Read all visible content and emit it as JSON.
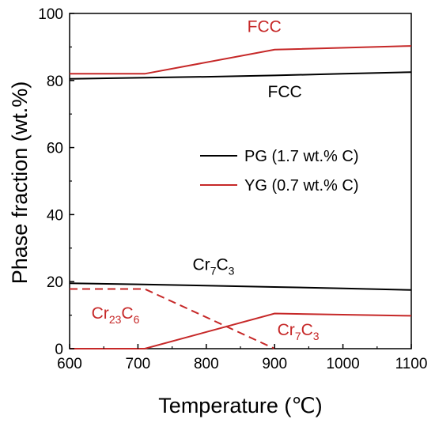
{
  "chart_data": {
    "type": "line",
    "xlabel": "Temperature (℃)",
    "ylabel": "Phase fraction (wt.%)",
    "xlim": [
      600,
      1100
    ],
    "ylim": [
      0,
      100
    ],
    "xticks": [
      "600",
      "700",
      "800",
      "900",
      "1000",
      "1100"
    ],
    "yticks": [
      "0",
      "20",
      "40",
      "60",
      "80",
      "100"
    ],
    "grid": false,
    "legend_position": "center-right",
    "legend": [
      {
        "label": "PG (1.7 wt.% C)",
        "color": "#000000"
      },
      {
        "label": "YG (0.7 wt.% C)",
        "color": "#c62828"
      }
    ],
    "series": [
      {
        "group": "PG",
        "phase": "FCC",
        "color": "#000000",
        "style": "solid",
        "x": [
          600,
          700,
          800,
          900,
          1000,
          1100
        ],
        "y": [
          80.5,
          80.8,
          81.1,
          81.5,
          82.0,
          82.5
        ]
      },
      {
        "group": "PG",
        "phase": "Cr7C3",
        "color": "#000000",
        "style": "solid",
        "x": [
          600,
          700,
          800,
          900,
          1000,
          1100
        ],
        "y": [
          19.5,
          19.2,
          18.8,
          18.4,
          18.0,
          17.5
        ]
      },
      {
        "group": "YG",
        "phase": "FCC",
        "color": "#c62828",
        "style": "solid",
        "x": [
          600,
          710,
          900,
          1100
        ],
        "y": [
          82.0,
          82.0,
          89.2,
          90.3
        ]
      },
      {
        "group": "YG",
        "phase": "Cr23C6",
        "color": "#c62828",
        "style": "dashed",
        "x": [
          600,
          710,
          900
        ],
        "y": [
          17.8,
          17.8,
          0.0
        ]
      },
      {
        "group": "YG",
        "phase": "Cr7C3",
        "color": "#c62828",
        "style": "solid",
        "x": [
          600,
          710,
          900,
          1100
        ],
        "y": [
          0.0,
          0.0,
          10.5,
          9.8
        ]
      }
    ],
    "annotations": [
      {
        "main": "FCC",
        "sub": "",
        "sub2": "",
        "color": "#c62828",
        "x": 860,
        "y": 94.5
      },
      {
        "main": "FCC",
        "sub": "",
        "sub2": "",
        "color": "#000000",
        "x": 890,
        "y": 75.0
      },
      {
        "main": "Cr",
        "sub": "7",
        "mid": "C",
        "sub2": "3",
        "color": "#000000",
        "x": 780,
        "y": 23.5
      },
      {
        "main": "Cr",
        "sub": "23",
        "mid": "C",
        "sub2": "6",
        "color": "#c62828",
        "x": 632,
        "y": 9.0
      },
      {
        "main": "Cr",
        "sub": "7",
        "mid": "C",
        "sub2": "3",
        "color": "#c62828",
        "x": 904,
        "y": 4.0
      }
    ]
  }
}
